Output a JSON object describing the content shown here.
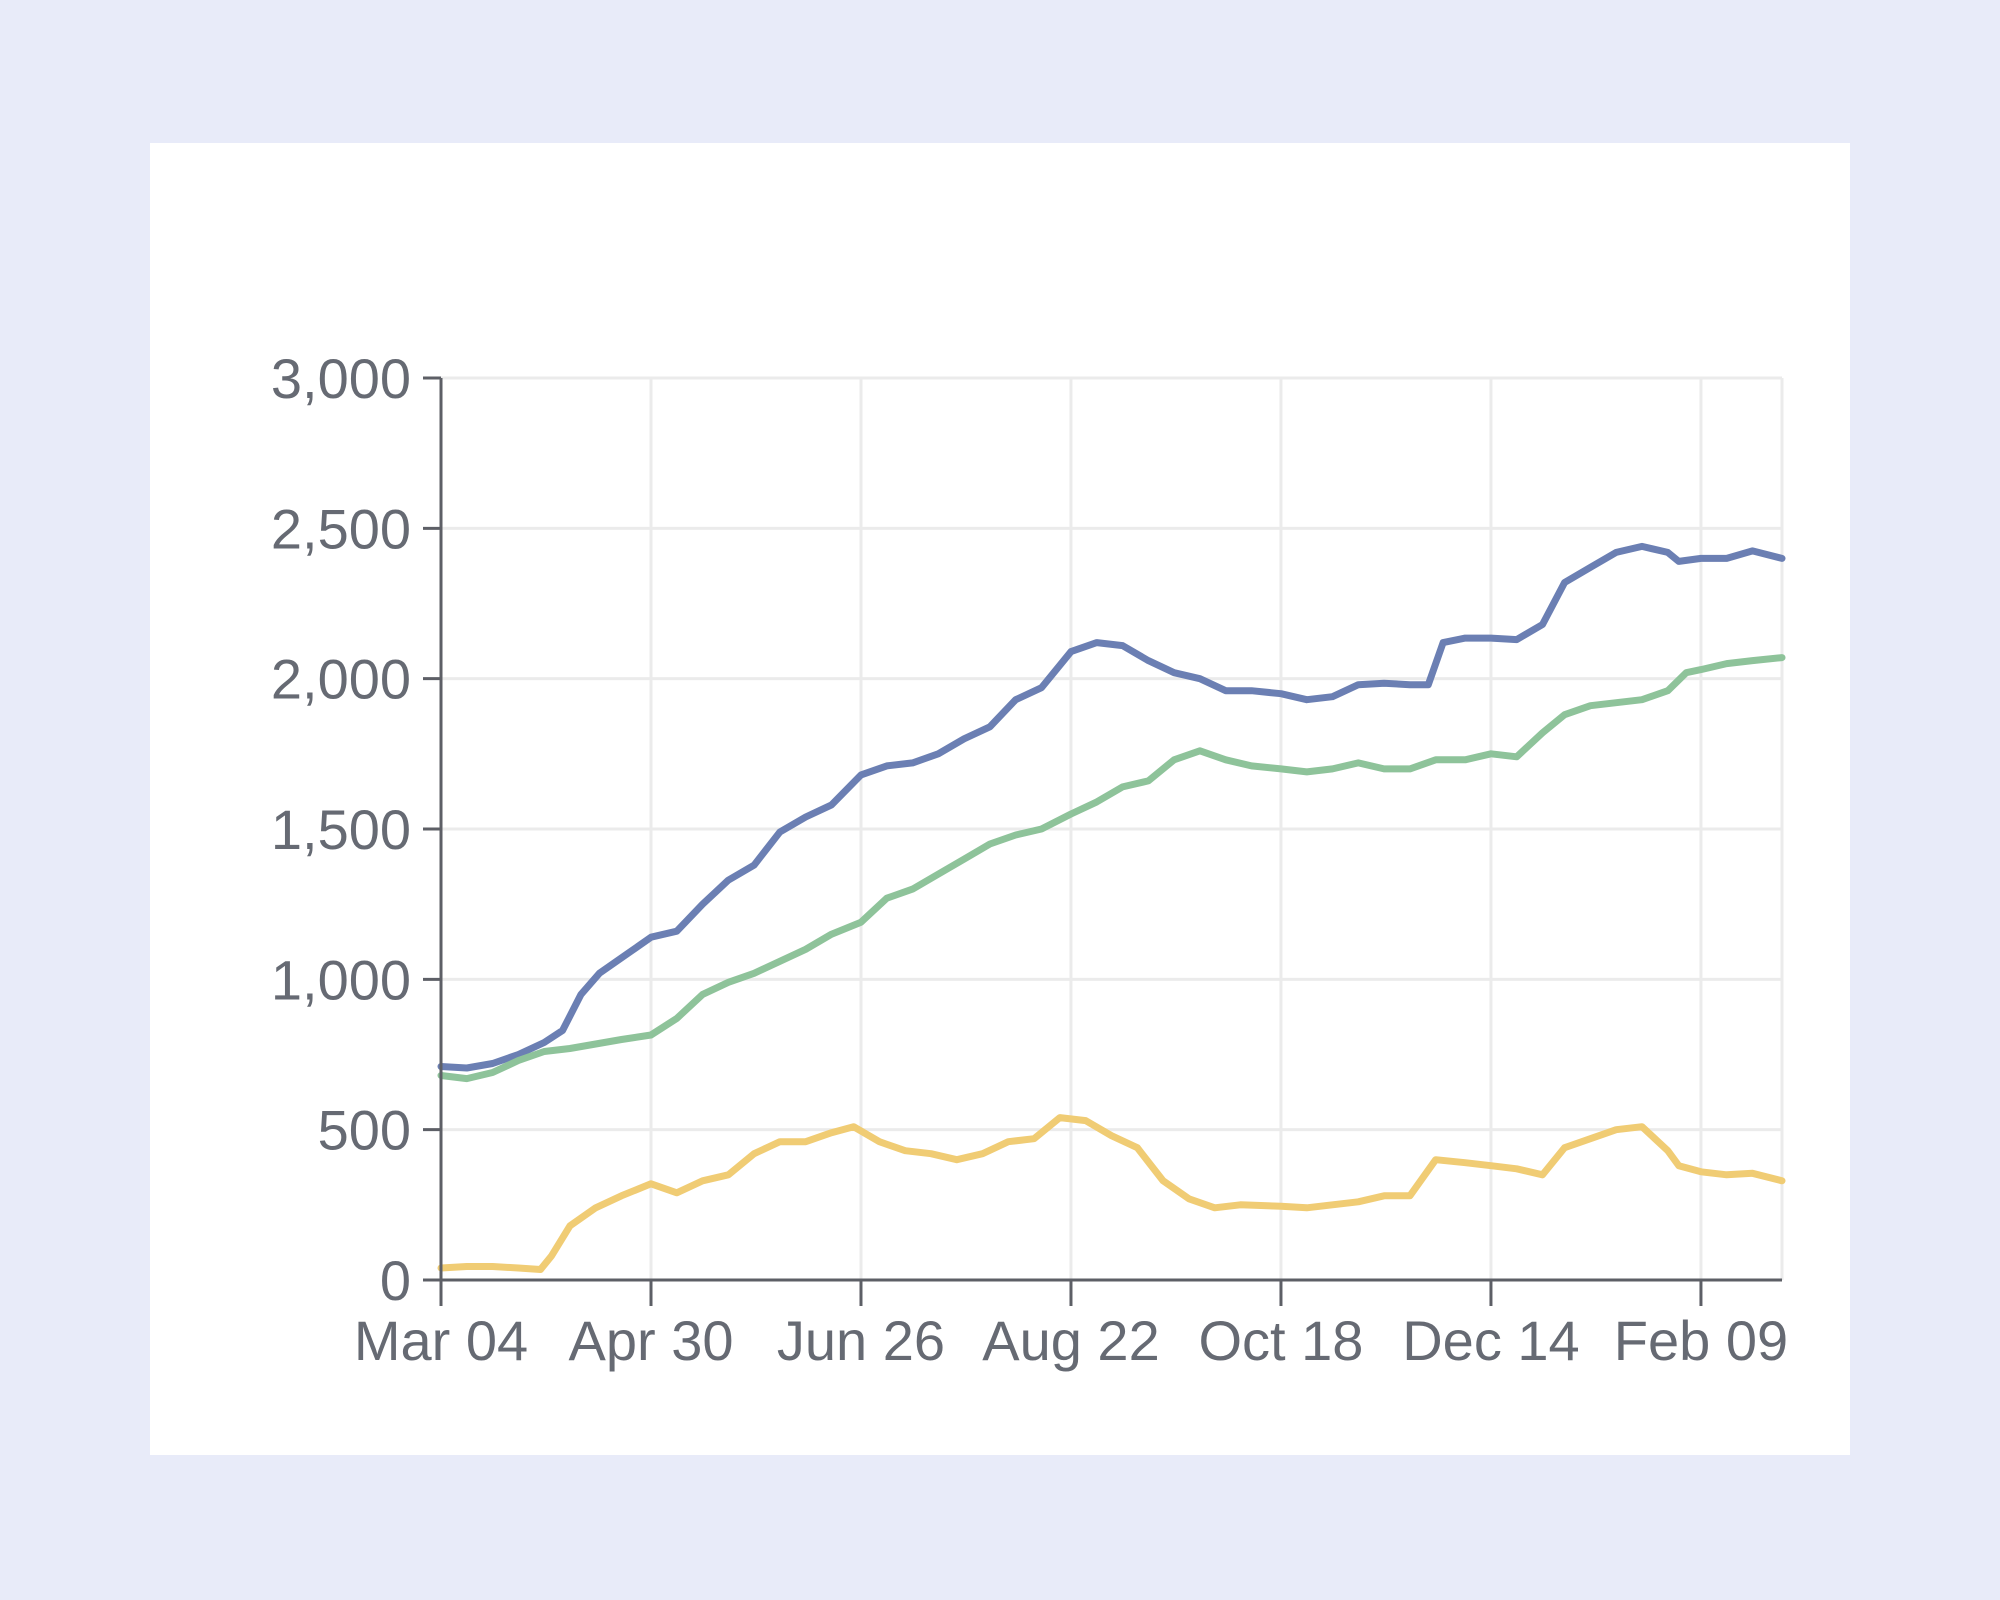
{
  "chart_data": {
    "type": "line",
    "title": "",
    "xlabel": "",
    "ylabel": "",
    "ylim": [
      0,
      3000
    ],
    "xlim": [
      "2023-03-04",
      "2024-03-02"
    ],
    "grid": true,
    "legend": "none",
    "y_ticks": [
      {
        "value": 0,
        "label": "0"
      },
      {
        "value": 500,
        "label": "500"
      },
      {
        "value": 1000,
        "label": "1,000"
      },
      {
        "value": 1500,
        "label": "1,500"
      },
      {
        "value": 2000,
        "label": "2,000"
      },
      {
        "value": 2500,
        "label": "2,500"
      },
      {
        "value": 3000,
        "label": "3,000"
      }
    ],
    "x_ticks": [
      {
        "date": "2023-03-04",
        "label": "Mar 04"
      },
      {
        "date": "2023-04-30",
        "label": "Apr 30"
      },
      {
        "date": "2023-06-26",
        "label": "Jun 26"
      },
      {
        "date": "2023-08-22",
        "label": "Aug 22"
      },
      {
        "date": "2023-10-18",
        "label": "Oct 18"
      },
      {
        "date": "2023-12-14",
        "label": "Dec 14"
      },
      {
        "date": "2024-02-09",
        "label": "Feb 09"
      }
    ],
    "series": [
      {
        "color": "#6b7fb3",
        "points": [
          [
            "2023-03-04",
            710
          ],
          [
            "2023-03-11",
            705
          ],
          [
            "2023-03-18",
            720
          ],
          [
            "2023-03-25",
            750
          ],
          [
            "2023-04-01",
            790
          ],
          [
            "2023-04-06",
            830
          ],
          [
            "2023-04-11",
            950
          ],
          [
            "2023-04-16",
            1020
          ],
          [
            "2023-04-23",
            1080
          ],
          [
            "2023-04-30",
            1140
          ],
          [
            "2023-05-07",
            1160
          ],
          [
            "2023-05-14",
            1250
          ],
          [
            "2023-05-21",
            1330
          ],
          [
            "2023-05-28",
            1380
          ],
          [
            "2023-06-04",
            1490
          ],
          [
            "2023-06-11",
            1540
          ],
          [
            "2023-06-18",
            1580
          ],
          [
            "2023-06-26",
            1680
          ],
          [
            "2023-07-03",
            1710
          ],
          [
            "2023-07-10",
            1720
          ],
          [
            "2023-07-17",
            1750
          ],
          [
            "2023-07-24",
            1800
          ],
          [
            "2023-07-31",
            1840
          ],
          [
            "2023-08-07",
            1930
          ],
          [
            "2023-08-14",
            1970
          ],
          [
            "2023-08-22",
            2090
          ],
          [
            "2023-08-29",
            2120
          ],
          [
            "2023-09-05",
            2110
          ],
          [
            "2023-09-12",
            2060
          ],
          [
            "2023-09-19",
            2020
          ],
          [
            "2023-09-26",
            2000
          ],
          [
            "2023-10-03",
            1960
          ],
          [
            "2023-10-10",
            1960
          ],
          [
            "2023-10-18",
            1950
          ],
          [
            "2023-10-25",
            1930
          ],
          [
            "2023-11-01",
            1940
          ],
          [
            "2023-11-08",
            1980
          ],
          [
            "2023-11-15",
            1985
          ],
          [
            "2023-11-22",
            1980
          ],
          [
            "2023-11-27",
            1980
          ],
          [
            "2023-12-01",
            2120
          ],
          [
            "2023-12-07",
            2135
          ],
          [
            "2023-12-14",
            2135
          ],
          [
            "2023-12-21",
            2130
          ],
          [
            "2023-12-28",
            2180
          ],
          [
            "2024-01-03",
            2320
          ],
          [
            "2024-01-10",
            2370
          ],
          [
            "2024-01-17",
            2420
          ],
          [
            "2024-01-24",
            2440
          ],
          [
            "2024-01-31",
            2420
          ],
          [
            "2024-02-03",
            2390
          ],
          [
            "2024-02-09",
            2400
          ],
          [
            "2024-02-16",
            2400
          ],
          [
            "2024-02-23",
            2425
          ],
          [
            "2024-03-02",
            2400
          ]
        ]
      },
      {
        "color": "#8ec39a",
        "points": [
          [
            "2023-03-04",
            680
          ],
          [
            "2023-03-11",
            670
          ],
          [
            "2023-03-18",
            690
          ],
          [
            "2023-03-25",
            730
          ],
          [
            "2023-04-01",
            760
          ],
          [
            "2023-04-08",
            770
          ],
          [
            "2023-04-15",
            785
          ],
          [
            "2023-04-22",
            800
          ],
          [
            "2023-04-30",
            815
          ],
          [
            "2023-05-07",
            870
          ],
          [
            "2023-05-14",
            950
          ],
          [
            "2023-05-21",
            990
          ],
          [
            "2023-05-28",
            1020
          ],
          [
            "2023-06-04",
            1060
          ],
          [
            "2023-06-11",
            1100
          ],
          [
            "2023-06-18",
            1150
          ],
          [
            "2023-06-26",
            1190
          ],
          [
            "2023-07-03",
            1270
          ],
          [
            "2023-07-10",
            1300
          ],
          [
            "2023-07-17",
            1350
          ],
          [
            "2023-07-24",
            1400
          ],
          [
            "2023-07-31",
            1450
          ],
          [
            "2023-08-07",
            1480
          ],
          [
            "2023-08-14",
            1500
          ],
          [
            "2023-08-22",
            1550
          ],
          [
            "2023-08-29",
            1590
          ],
          [
            "2023-09-05",
            1640
          ],
          [
            "2023-09-12",
            1660
          ],
          [
            "2023-09-19",
            1730
          ],
          [
            "2023-09-26",
            1760
          ],
          [
            "2023-10-03",
            1730
          ],
          [
            "2023-10-10",
            1710
          ],
          [
            "2023-10-18",
            1700
          ],
          [
            "2023-10-25",
            1690
          ],
          [
            "2023-11-01",
            1700
          ],
          [
            "2023-11-08",
            1720
          ],
          [
            "2023-11-15",
            1700
          ],
          [
            "2023-11-22",
            1700
          ],
          [
            "2023-11-29",
            1730
          ],
          [
            "2023-12-07",
            1730
          ],
          [
            "2023-12-14",
            1750
          ],
          [
            "2023-12-21",
            1740
          ],
          [
            "2023-12-28",
            1820
          ],
          [
            "2024-01-03",
            1880
          ],
          [
            "2024-01-10",
            1910
          ],
          [
            "2024-01-17",
            1920
          ],
          [
            "2024-01-24",
            1930
          ],
          [
            "2024-01-31",
            1960
          ],
          [
            "2024-02-05",
            2020
          ],
          [
            "2024-02-09",
            2030
          ],
          [
            "2024-02-16",
            2050
          ],
          [
            "2024-02-23",
            2060
          ],
          [
            "2024-03-02",
            2070
          ]
        ]
      },
      {
        "color": "#f0cc74",
        "points": [
          [
            "2023-03-04",
            40
          ],
          [
            "2023-03-11",
            45
          ],
          [
            "2023-03-18",
            45
          ],
          [
            "2023-03-25",
            40
          ],
          [
            "2023-03-31",
            35
          ],
          [
            "2023-04-03",
            80
          ],
          [
            "2023-04-08",
            180
          ],
          [
            "2023-04-15",
            240
          ],
          [
            "2023-04-22",
            280
          ],
          [
            "2023-04-30",
            320
          ],
          [
            "2023-05-07",
            290
          ],
          [
            "2023-05-14",
            330
          ],
          [
            "2023-05-21",
            350
          ],
          [
            "2023-05-28",
            420
          ],
          [
            "2023-06-04",
            460
          ],
          [
            "2023-06-11",
            460
          ],
          [
            "2023-06-18",
            490
          ],
          [
            "2023-06-24",
            510
          ],
          [
            "2023-07-01",
            460
          ],
          [
            "2023-07-08",
            430
          ],
          [
            "2023-07-15",
            420
          ],
          [
            "2023-07-22",
            400
          ],
          [
            "2023-07-29",
            420
          ],
          [
            "2023-08-05",
            460
          ],
          [
            "2023-08-12",
            470
          ],
          [
            "2023-08-19",
            540
          ],
          [
            "2023-08-26",
            530
          ],
          [
            "2023-09-02",
            480
          ],
          [
            "2023-09-09",
            440
          ],
          [
            "2023-09-16",
            330
          ],
          [
            "2023-09-23",
            270
          ],
          [
            "2023-09-30",
            240
          ],
          [
            "2023-10-07",
            250
          ],
          [
            "2023-10-18",
            245
          ],
          [
            "2023-10-25",
            240
          ],
          [
            "2023-11-01",
            250
          ],
          [
            "2023-11-08",
            260
          ],
          [
            "2023-11-15",
            280
          ],
          [
            "2023-11-22",
            280
          ],
          [
            "2023-11-29",
            400
          ],
          [
            "2023-12-07",
            390
          ],
          [
            "2023-12-14",
            380
          ],
          [
            "2023-12-21",
            370
          ],
          [
            "2023-12-28",
            350
          ],
          [
            "2024-01-03",
            440
          ],
          [
            "2024-01-10",
            470
          ],
          [
            "2024-01-17",
            500
          ],
          [
            "2024-01-24",
            510
          ],
          [
            "2024-01-31",
            430
          ],
          [
            "2024-02-03",
            380
          ],
          [
            "2024-02-09",
            360
          ],
          [
            "2024-02-16",
            350
          ],
          [
            "2024-02-23",
            355
          ],
          [
            "2024-03-02",
            330
          ]
        ]
      }
    ]
  }
}
